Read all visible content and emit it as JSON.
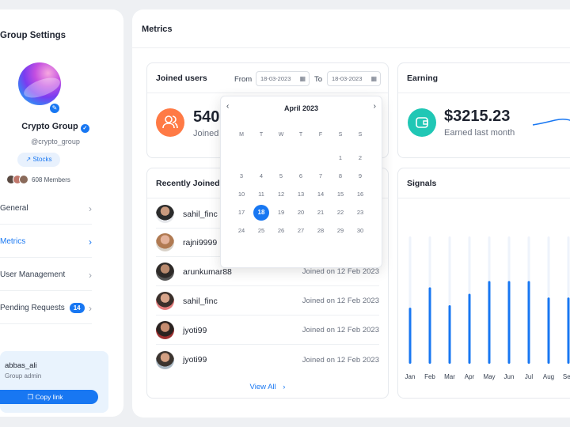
{
  "sidebar": {
    "title": "Group Settings",
    "group_name": "Crypto Group",
    "handle": "@crypto_group",
    "tag": "Stocks",
    "members": "608 Members",
    "nav": [
      {
        "label": "General"
      },
      {
        "label": "Metrics"
      },
      {
        "label": "User Management"
      },
      {
        "label": "Pending Requests",
        "badge": "14"
      }
    ],
    "admin": {
      "name": "abbas_ali",
      "role": "Group admin",
      "copy_label": "Copy link"
    }
  },
  "main": {
    "title": "Metrics",
    "joined_users": {
      "title": "Joined users",
      "from_label": "From",
      "from_date": "18-03-2023",
      "to_label": "To",
      "to_date": "18-03-2023",
      "value": "540",
      "sub": "Joined"
    },
    "earning": {
      "title": "Earning",
      "value": "$3215.23",
      "sub": "Earned last month"
    },
    "recently_joined": {
      "title": "Recently Joined",
      "rows": [
        {
          "name": "sahil_finc",
          "date": ""
        },
        {
          "name": "rajni9999",
          "date": ""
        },
        {
          "name": "arunkumar88",
          "date": "Joined on 12 Feb 2023"
        },
        {
          "name": "sahil_finc",
          "date": "Joined on 12 Feb 2023"
        },
        {
          "name": "jyoti99",
          "date": "Joined on 12 Feb 2023"
        },
        {
          "name": "jyoti99",
          "date": "Joined on 12 Feb 2023"
        }
      ],
      "view_all": "View All"
    },
    "signals": {
      "title": "Signals"
    }
  },
  "calendar": {
    "month": "April 2023",
    "weekdays": [
      "M",
      "T",
      "W",
      "T",
      "F",
      "S",
      "S"
    ],
    "selected_day": "18"
  },
  "chart_data": {
    "type": "bar",
    "title": "Signals",
    "categories": [
      "Jan",
      "Feb",
      "Mar",
      "Apr",
      "May",
      "Jun",
      "Jul",
      "Aug",
      "Sep"
    ],
    "values": [
      0.44,
      0.6,
      0.46,
      0.55,
      0.65,
      0.65,
      0.65,
      0.52,
      0.52
    ],
    "track_max": 1.0,
    "colors": {
      "bar": "#1877f2",
      "track": "#eef3fb"
    }
  },
  "colors": {
    "accent": "#1877f2",
    "orange": "#ff7a45",
    "teal": "#20c7b5"
  },
  "icons": {
    "edit": "pencil-icon",
    "verified": "check-icon",
    "tag": "trend-icon",
    "users": "users-icon",
    "earning": "wallet-icon"
  }
}
